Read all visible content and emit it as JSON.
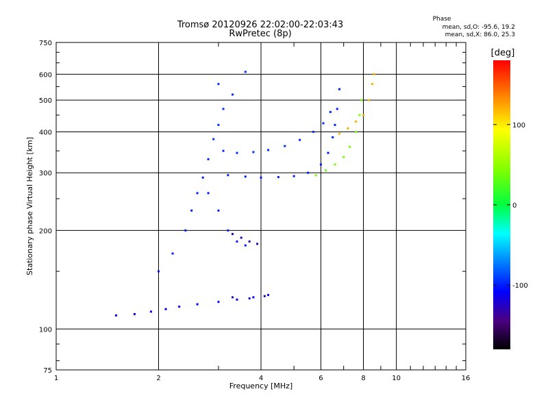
{
  "header": {
    "title": "Tromsø 20120926 22:02:00-22:03:43",
    "subtitle": "RwPretec (8p)"
  },
  "phase_stats": {
    "label": "Phase",
    "line_o": "mean, sd,O: -95.6, 19.2",
    "line_x": "mean, sd,X:  86.0, 25.3"
  },
  "colorbar": {
    "unit": "[deg]",
    "tick_values": [
      100,
      0,
      -100
    ],
    "tick_labels": [
      "100",
      "0",
      "-100"
    ],
    "range": [
      -180,
      180
    ],
    "colormap": "rainbow"
  },
  "chart_data": {
    "type": "scatter",
    "title": "Tromsø 20120926 22:02:00-22:03:43",
    "subtitle": "RwPretec (8p)",
    "xlabel": "Frequency [MHz]",
    "ylabel": "Stationary phase Virtual Height [km]",
    "x_scale": "log",
    "y_scale": "log",
    "xlim": [
      1,
      16
    ],
    "ylim": [
      75,
      750
    ],
    "x_ticks": [
      1,
      2,
      4,
      6,
      8,
      10,
      16
    ],
    "x_tick_labels": [
      "1",
      "2",
      "4",
      "6",
      "8",
      "10",
      "16"
    ],
    "y_ticks": [
      75,
      100,
      200,
      300,
      400,
      500,
      600,
      750
    ],
    "y_tick_labels": [
      "75",
      "100",
      "200",
      "300",
      "400",
      "500",
      "600",
      "750"
    ],
    "grid": true,
    "traces": [
      {
        "name": "",
        "phase_deg": -110,
        "points": [
          [
            1.5,
            110
          ],
          [
            1.7,
            111
          ],
          [
            1.9,
            113
          ],
          [
            2.1,
            115
          ],
          [
            2.3,
            117
          ],
          [
            2.6,
            119
          ],
          [
            3.0,
            121
          ],
          [
            3.4,
            123
          ],
          [
            3.8,
            125
          ],
          [
            4.2,
            127
          ]
        ]
      },
      {
        "name": "",
        "phase_deg": -100,
        "points": [
          [
            3.2,
            295
          ],
          [
            3.6,
            292
          ],
          [
            4.0,
            290
          ],
          [
            4.5,
            291
          ],
          [
            5.0,
            293
          ],
          [
            5.5,
            300
          ],
          [
            6.0,
            318
          ],
          [
            6.3,
            345
          ],
          [
            6.5,
            385
          ],
          [
            6.6,
            420
          ],
          [
            6.7,
            470
          ],
          [
            6.8,
            540
          ]
        ]
      },
      {
        "name": "",
        "phase_deg": -95,
        "points": [
          [
            3.1,
            350
          ],
          [
            3.4,
            345
          ],
          [
            3.8,
            347
          ],
          [
            4.2,
            352
          ],
          [
            4.7,
            362
          ],
          [
            5.2,
            378
          ],
          [
            5.7,
            400
          ],
          [
            6.1,
            425
          ],
          [
            6.4,
            460
          ]
        ]
      },
      {
        "name": "",
        "phase_deg": 40,
        "points": [
          [
            5.8,
            295
          ],
          [
            6.2,
            305
          ],
          [
            6.6,
            318
          ],
          [
            7.0,
            335
          ],
          [
            7.3,
            360
          ],
          [
            7.6,
            400
          ],
          [
            7.8,
            450
          ],
          [
            7.9,
            500
          ]
        ]
      },
      {
        "name": "",
        "phase_deg": 120,
        "points": [
          [
            6.8,
            395
          ],
          [
            7.2,
            410
          ],
          [
            7.6,
            430
          ],
          [
            8.0,
            450
          ],
          [
            8.3,
            500
          ],
          [
            8.5,
            560
          ],
          [
            8.6,
            600
          ]
        ]
      },
      {
        "name": "",
        "phase_deg": -100,
        "points": [
          [
            2.0,
            150
          ],
          [
            2.2,
            170
          ],
          [
            2.4,
            200
          ],
          [
            2.5,
            230
          ],
          [
            2.6,
            260
          ],
          [
            2.7,
            290
          ],
          [
            2.8,
            260
          ],
          [
            3.0,
            230
          ],
          [
            3.2,
            200
          ],
          [
            3.4,
            185
          ],
          [
            3.6,
            180
          ]
        ]
      },
      {
        "name": "",
        "phase_deg": -130,
        "points": [
          [
            3.3,
            195
          ],
          [
            3.5,
            190
          ],
          [
            3.7,
            185
          ],
          [
            3.9,
            182
          ],
          [
            3.3,
            125
          ],
          [
            3.7,
            124
          ],
          [
            4.1,
            126
          ]
        ]
      },
      {
        "name": "",
        "phase_deg": -95,
        "points": [
          [
            2.8,
            330
          ],
          [
            2.9,
            380
          ],
          [
            3.0,
            420
          ],
          [
            3.1,
            470
          ],
          [
            3.3,
            520
          ],
          [
            3.0,
            560
          ],
          [
            3.6,
            610
          ]
        ]
      }
    ]
  }
}
